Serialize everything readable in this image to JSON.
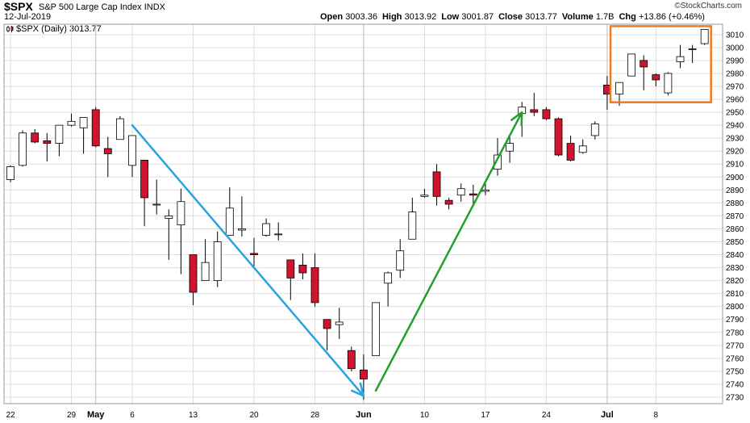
{
  "header": {
    "symbol": "$SPX",
    "name": "S&P 500 Large Cap Index",
    "exchange": "INDX",
    "date": "12-Jul-2019",
    "brand": "©StockCharts.com",
    "legend": "$SPX (Daily) 3013.77",
    "stats": [
      {
        "label": "Open",
        "value": "3003.36"
      },
      {
        "label": "High",
        "value": "3013.92"
      },
      {
        "label": "Low",
        "value": "3001.87"
      },
      {
        "label": "Close",
        "value": "3013.77"
      },
      {
        "label": "Volume",
        "value": "1.7B"
      },
      {
        "label": "Chg",
        "value": "+13.86 (+0.46%)"
      }
    ]
  },
  "chart_data": {
    "type": "candlestick",
    "ylim": [
      2725,
      3018
    ],
    "yticks": [
      2730,
      2740,
      2750,
      2760,
      2770,
      2780,
      2790,
      2800,
      2810,
      2820,
      2830,
      2840,
      2850,
      2860,
      2870,
      2880,
      2890,
      2900,
      2910,
      2920,
      2930,
      2940,
      2950,
      2960,
      2970,
      2980,
      2990,
      3000,
      3010
    ],
    "grid": true,
    "xtick_labels": [
      {
        "label": "22",
        "date": "2019-04-22",
        "major": false
      },
      {
        "label": "29",
        "date": "2019-04-29",
        "major": false
      },
      {
        "label": "May",
        "date": "2019-05-01",
        "major": true
      },
      {
        "label": "6",
        "date": "2019-05-06",
        "major": false
      },
      {
        "label": "13",
        "date": "2019-05-13",
        "major": false
      },
      {
        "label": "20",
        "date": "2019-05-20",
        "major": false
      },
      {
        "label": "28",
        "date": "2019-05-28",
        "major": false
      },
      {
        "label": "Jun",
        "date": "2019-06-03",
        "major": true
      },
      {
        "label": "10",
        "date": "2019-06-10",
        "major": false
      },
      {
        "label": "17",
        "date": "2019-06-17",
        "major": false
      },
      {
        "label": "24",
        "date": "2019-06-24",
        "major": false
      },
      {
        "label": "Jul",
        "date": "2019-07-01",
        "major": true
      },
      {
        "label": "8",
        "date": "2019-07-08",
        "major": false
      }
    ],
    "candles": [
      {
        "date": "2019-04-22",
        "open": 2898,
        "high": 2909,
        "low": 2896,
        "close": 2908
      },
      {
        "date": "2019-04-23",
        "open": 2909,
        "high": 2936,
        "low": 2908,
        "close": 2934
      },
      {
        "date": "2019-04-24",
        "open": 2934,
        "high": 2937,
        "low": 2926,
        "close": 2927
      },
      {
        "date": "2019-04-25",
        "open": 2928,
        "high": 2934,
        "low": 2912,
        "close": 2926
      },
      {
        "date": "2019-04-26",
        "open": 2926,
        "high": 2940,
        "low": 2916,
        "close": 2940
      },
      {
        "date": "2019-04-29",
        "open": 2940,
        "high": 2949,
        "low": 2939,
        "close": 2943
      },
      {
        "date": "2019-04-30",
        "open": 2938,
        "high": 2946,
        "low": 2918,
        "close": 2946
      },
      {
        "date": "2019-05-01",
        "open": 2952,
        "high": 2954,
        "low": 2923,
        "close": 2924
      },
      {
        "date": "2019-05-02",
        "open": 2922,
        "high": 2931,
        "low": 2900,
        "close": 2918
      },
      {
        "date": "2019-05-03",
        "open": 2929,
        "high": 2947,
        "low": 2929,
        "close": 2945
      },
      {
        "date": "2019-05-06",
        "open": 2909,
        "high": 2932,
        "low": 2900,
        "close": 2932
      },
      {
        "date": "2019-05-07",
        "open": 2913,
        "high": 2913,
        "low": 2862,
        "close": 2884
      },
      {
        "date": "2019-05-08",
        "open": 2879,
        "high": 2898,
        "low": 2871,
        "close": 2879
      },
      {
        "date": "2019-05-09",
        "open": 2868,
        "high": 2875,
        "low": 2836,
        "close": 2870
      },
      {
        "date": "2019-05-10",
        "open": 2863,
        "high": 2891,
        "low": 2825,
        "close": 2881
      },
      {
        "date": "2019-05-13",
        "open": 2840,
        "high": 2840,
        "low": 2801,
        "close": 2811
      },
      {
        "date": "2019-05-14",
        "open": 2820,
        "high": 2852,
        "low": 2820,
        "close": 2834
      },
      {
        "date": "2019-05-15",
        "open": 2820,
        "high": 2858,
        "low": 2815,
        "close": 2850
      },
      {
        "date": "2019-05-16",
        "open": 2855,
        "high": 2892,
        "low": 2855,
        "close": 2876
      },
      {
        "date": "2019-05-17",
        "open": 2859,
        "high": 2885,
        "low": 2854,
        "close": 2860
      },
      {
        "date": "2019-05-20",
        "open": 2841,
        "high": 2853,
        "low": 2831,
        "close": 2840
      },
      {
        "date": "2019-05-21",
        "open": 2855,
        "high": 2868,
        "low": 2854,
        "close": 2864
      },
      {
        "date": "2019-05-22",
        "open": 2856,
        "high": 2865,
        "low": 2851,
        "close": 2856
      },
      {
        "date": "2019-05-23",
        "open": 2836,
        "high": 2836,
        "low": 2805,
        "close": 2822
      },
      {
        "date": "2019-05-24",
        "open": 2832,
        "high": 2841,
        "low": 2821,
        "close": 2826
      },
      {
        "date": "2019-05-28",
        "open": 2830,
        "high": 2841,
        "low": 2800,
        "close": 2803
      },
      {
        "date": "2019-05-29",
        "open": 2790,
        "high": 2790,
        "low": 2766,
        "close": 2783
      },
      {
        "date": "2019-05-30",
        "open": 2786,
        "high": 2799,
        "low": 2775,
        "close": 2788
      },
      {
        "date": "2019-05-31",
        "open": 2766,
        "high": 2769,
        "low": 2750,
        "close": 2752
      },
      {
        "date": "2019-06-03",
        "open": 2751,
        "high": 2763,
        "low": 2728,
        "close": 2744
      },
      {
        "date": "2019-06-04",
        "open": 2762,
        "high": 2803,
        "low": 2762,
        "close": 2803
      },
      {
        "date": "2019-06-05",
        "open": 2818,
        "high": 2827,
        "low": 2800,
        "close": 2826
      },
      {
        "date": "2019-06-06",
        "open": 2828,
        "high": 2852,
        "low": 2822,
        "close": 2843
      },
      {
        "date": "2019-06-07",
        "open": 2852,
        "high": 2884,
        "low": 2852,
        "close": 2873
      },
      {
        "date": "2019-06-10",
        "open": 2885,
        "high": 2891,
        "low": 2884,
        "close": 2886
      },
      {
        "date": "2019-06-11",
        "open": 2904,
        "high": 2910,
        "low": 2878,
        "close": 2885
      },
      {
        "date": "2019-06-12",
        "open": 2882,
        "high": 2884,
        "low": 2875,
        "close": 2879
      },
      {
        "date": "2019-06-13",
        "open": 2886,
        "high": 2895,
        "low": 2881,
        "close": 2891
      },
      {
        "date": "2019-06-14",
        "open": 2887,
        "high": 2894,
        "low": 2879,
        "close": 2886
      },
      {
        "date": "2019-06-17",
        "open": 2889,
        "high": 2897,
        "low": 2886,
        "close": 2890
      },
      {
        "date": "2019-06-18",
        "open": 2906,
        "high": 2930,
        "low": 2901,
        "close": 2917
      },
      {
        "date": "2019-06-19",
        "open": 2920,
        "high": 2931,
        "low": 2911,
        "close": 2926
      },
      {
        "date": "2019-06-20",
        "open": 2949,
        "high": 2958,
        "low": 2931,
        "close": 2954
      },
      {
        "date": "2019-06-21",
        "open": 2952,
        "high": 2965,
        "low": 2947,
        "close": 2950
      },
      {
        "date": "2019-06-24",
        "open": 2952,
        "high": 2954,
        "low": 2944,
        "close": 2945
      },
      {
        "date": "2019-06-25",
        "open": 2945,
        "high": 2946,
        "low": 2916,
        "close": 2917
      },
      {
        "date": "2019-06-26",
        "open": 2926,
        "high": 2932,
        "low": 2912,
        "close": 2913
      },
      {
        "date": "2019-06-27",
        "open": 2919,
        "high": 2929,
        "low": 2918,
        "close": 2924
      },
      {
        "date": "2019-06-28",
        "open": 2932,
        "high": 2943,
        "low": 2929,
        "close": 2941
      },
      {
        "date": "2019-07-01",
        "open": 2971,
        "high": 2978,
        "low": 2952,
        "close": 2964
      },
      {
        "date": "2019-07-02",
        "open": 2964,
        "high": 2973,
        "low": 2955,
        "close": 2973
      },
      {
        "date": "2019-07-03",
        "open": 2978,
        "high": 2995,
        "low": 2978,
        "close": 2995
      },
      {
        "date": "2019-07-05",
        "open": 2990,
        "high": 2994,
        "low": 2967,
        "close": 2985
      },
      {
        "date": "2019-07-08",
        "open": 2979,
        "high": 2980,
        "low": 2970,
        "close": 2975
      },
      {
        "date": "2019-07-09",
        "open": 2965,
        "high": 2981,
        "low": 2963,
        "close": 2980
      },
      {
        "date": "2019-07-10",
        "open": 2989,
        "high": 3002,
        "low": 2984,
        "close": 2993
      },
      {
        "date": "2019-07-11",
        "open": 2999,
        "high": 3002,
        "low": 2988,
        "close": 2999
      },
      {
        "date": "2019-07-12",
        "open": 3003,
        "high": 3014,
        "low": 3002,
        "close": 3014
      }
    ],
    "annotations": [
      {
        "kind": "arrow",
        "color": "#29a3e0",
        "from": {
          "date": "2019-05-06",
          "value": 2940
        },
        "to": {
          "date": "2019-06-03",
          "value": 2731
        }
      },
      {
        "kind": "arrow",
        "color": "#22a02a",
        "from": {
          "date": "2019-06-04",
          "value": 2735
        },
        "to": {
          "date": "2019-06-20",
          "value": 2950
        }
      },
      {
        "kind": "box",
        "color": "#f07a1f",
        "from_date": "2019-07-02",
        "to_date": "2019-07-12",
        "low": 2959,
        "high": 3014
      }
    ],
    "colors": {
      "up_fill": "#ffffff",
      "down_fill": "#d0132f",
      "outline": "#000000",
      "grid": "#dddddd"
    }
  }
}
